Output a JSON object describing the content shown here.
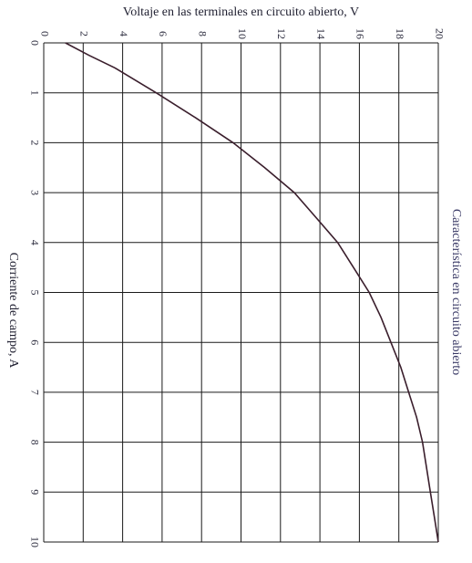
{
  "chart_data": {
    "type": "line",
    "orientation": "rotated-90-clockwise",
    "title": "",
    "xlabel": "Corriente de campo, A",
    "ylabel": "Voltaje en las terminales en circuito abierto, V",
    "xlim": [
      0,
      10
    ],
    "ylim": [
      0,
      20
    ],
    "x_ticks": [
      "0",
      "1",
      "2",
      "3",
      "4",
      "5",
      "6",
      "7",
      "8",
      "9",
      "10"
    ],
    "y_ticks": [
      "0",
      "2",
      "4",
      "6",
      "8",
      "10",
      "12",
      "14",
      "16",
      "18",
      "20"
    ],
    "grid": true,
    "series": [
      {
        "name": "Característica en circuito abierto",
        "x": [
          0.0,
          0.25,
          0.5,
          1.0,
          1.5,
          2.0,
          2.5,
          3.0,
          3.5,
          4.0,
          4.5,
          5.0,
          5.5,
          6.0,
          6.5,
          7.0,
          7.5,
          8.0,
          8.5,
          9.0,
          9.5,
          10.0
        ],
        "y": [
          1.1,
          2.3,
          3.6,
          5.7,
          7.7,
          9.6,
          11.2,
          12.7,
          13.8,
          14.9,
          15.7,
          16.5,
          17.1,
          17.6,
          18.1,
          18.5,
          18.9,
          19.2,
          19.4,
          19.6,
          19.8,
          20.0
        ]
      }
    ],
    "colors": {
      "curve": "#3a1e2c",
      "grid": "#1a1a1a",
      "text": "#2a2a3c"
    }
  }
}
